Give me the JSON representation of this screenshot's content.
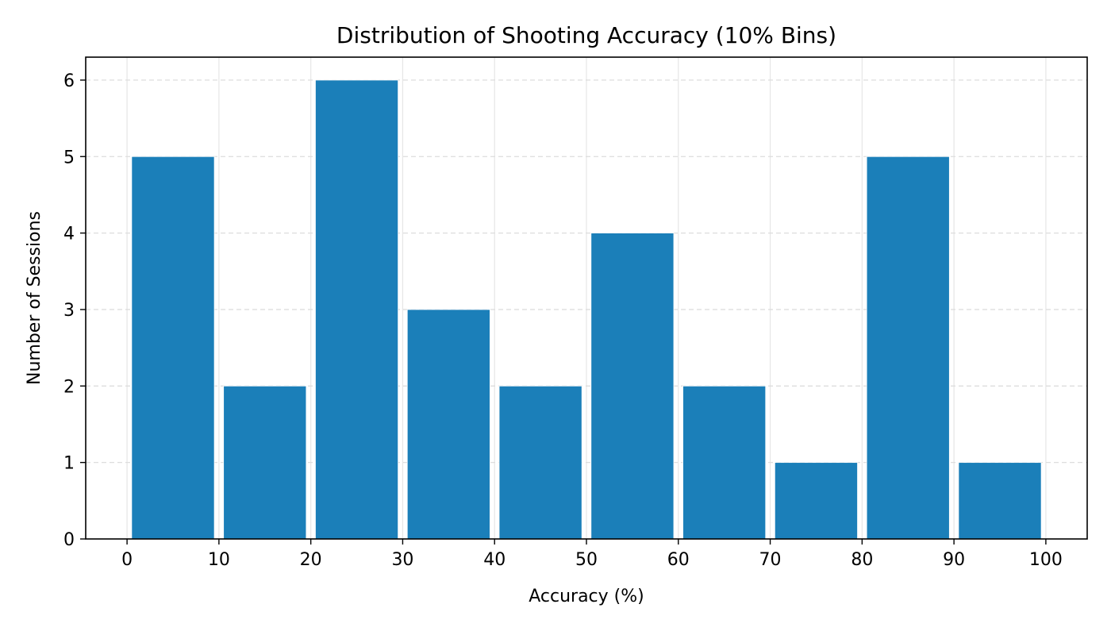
{
  "chart_data": {
    "type": "bar",
    "title": "Distribution of Shooting Accuracy (10% Bins)",
    "xlabel": "Accuracy (%)",
    "ylabel": "Number of Sessions",
    "bins": [
      {
        "start": 0,
        "end": 10,
        "count": 5
      },
      {
        "start": 10,
        "end": 20,
        "count": 2
      },
      {
        "start": 20,
        "end": 30,
        "count": 6
      },
      {
        "start": 30,
        "end": 40,
        "count": 3
      },
      {
        "start": 40,
        "end": 50,
        "count": 2
      },
      {
        "start": 50,
        "end": 60,
        "count": 4
      },
      {
        "start": 60,
        "end": 70,
        "count": 2
      },
      {
        "start": 70,
        "end": 80,
        "count": 1
      },
      {
        "start": 80,
        "end": 90,
        "count": 5
      },
      {
        "start": 90,
        "end": 100,
        "count": 1
      }
    ],
    "xlim": [
      -4.5,
      104.5
    ],
    "ylim": [
      0,
      6.3
    ],
    "xticks": [
      "0",
      "10",
      "20",
      "30",
      "40",
      "50",
      "60",
      "70",
      "80",
      "90",
      "100"
    ],
    "yticks": [
      "0",
      "1",
      "2",
      "3",
      "4",
      "5",
      "6"
    ],
    "grid": true,
    "bar_color": "#1b7fb9",
    "grid_color": "#dddddd"
  }
}
